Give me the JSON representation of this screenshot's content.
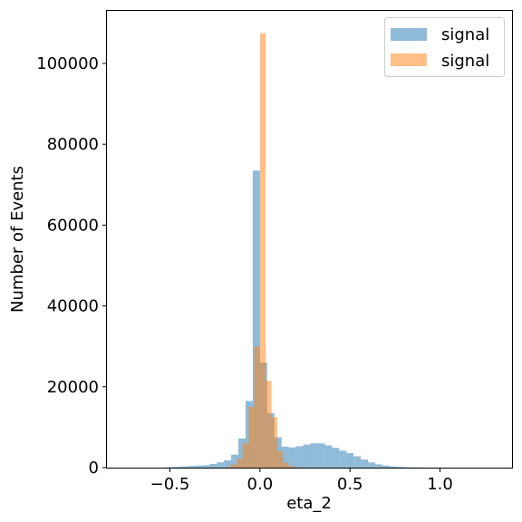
{
  "chart_data": {
    "type": "bar",
    "title": "",
    "xlabel": "eta_2",
    "ylabel": "Number of Events",
    "xlim": [
      -0.85,
      1.4
    ],
    "ylim": [
      0,
      113000
    ],
    "x_ticks": [
      -0.5,
      0.0,
      0.5,
      1.0
    ],
    "x_tick_labels": [
      "−0.5",
      "0.0",
      "0.5",
      "1.0"
    ],
    "y_ticks": [
      0,
      20000,
      40000,
      60000,
      80000,
      100000
    ],
    "y_tick_labels": [
      "0",
      "20000",
      "40000",
      "60000",
      "80000",
      "100000"
    ],
    "grid": false,
    "legend_position": "top-right",
    "series": [
      {
        "name": "signal",
        "color": "#1f77b4",
        "alpha": 0.5,
        "bin_width": 0.04,
        "bin_starts": [
          -0.52,
          -0.48,
          -0.44,
          -0.4,
          -0.36,
          -0.32,
          -0.28,
          -0.24,
          -0.2,
          -0.16,
          -0.12,
          -0.08,
          -0.04,
          0.0,
          0.04,
          0.08,
          0.12,
          0.16,
          0.2,
          0.24,
          0.28,
          0.32,
          0.36,
          0.4,
          0.44,
          0.48,
          0.52,
          0.56,
          0.6,
          0.64,
          0.68,
          0.72,
          0.76,
          0.8,
          0.84,
          0.88,
          0.92,
          0.96
        ],
        "values": [
          100,
          200,
          300,
          400,
          500,
          600,
          900,
          1300,
          1800,
          3200,
          7200,
          16500,
          73500,
          26000,
          13500,
          7500,
          5200,
          5000,
          5300,
          5700,
          6000,
          6000,
          5500,
          4900,
          4200,
          3600,
          2800,
          2000,
          1300,
          800,
          500,
          300,
          200,
          100,
          60,
          40,
          20,
          10
        ]
      },
      {
        "name": "signal",
        "color": "#ff7f0e",
        "alpha": 0.5,
        "bin_width": 0.032,
        "bin_starts": [
          -0.192,
          -0.16,
          -0.128,
          -0.096,
          -0.064,
          -0.032,
          0.0,
          0.032,
          0.064,
          0.096,
          0.128,
          0.16,
          0.192
        ],
        "values": [
          200,
          800,
          2200,
          6000,
          15000,
          30000,
          107500,
          21500,
          12500,
          4000,
          1200,
          300,
          100
        ]
      }
    ]
  }
}
